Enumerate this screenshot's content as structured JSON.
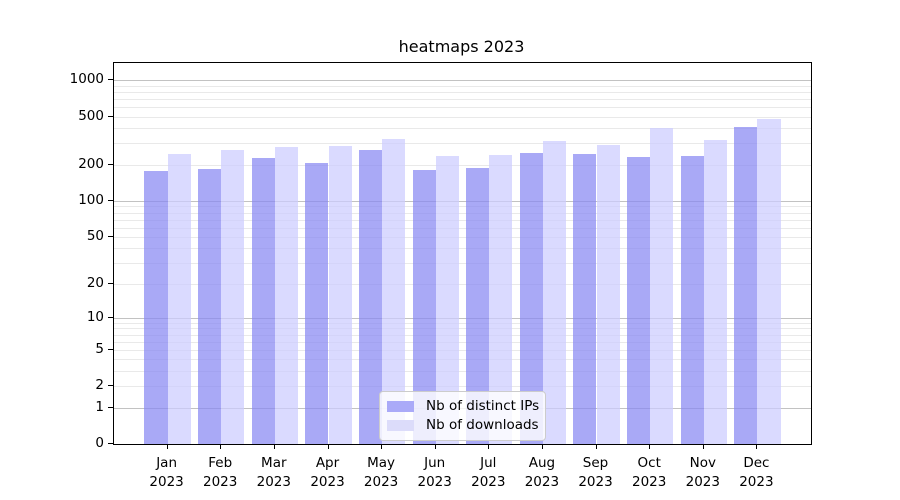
{
  "title": "heatmaps 2023",
  "chart_data": {
    "type": "bar",
    "title": "heatmaps 2023",
    "yscale": "log1p",
    "ylim": [
      0,
      1385
    ],
    "ylabel": "",
    "xlabel": "",
    "yticks": [
      1000,
      500,
      200,
      100,
      50,
      20,
      10,
      5,
      2,
      1,
      0
    ],
    "gridlines": {
      "major": [
        1,
        10,
        100,
        1000
      ],
      "minor": [
        2,
        3,
        4,
        5,
        6,
        7,
        8,
        9,
        20,
        30,
        40,
        50,
        60,
        70,
        80,
        90,
        200,
        300,
        400,
        500,
        600,
        700,
        800,
        900
      ]
    },
    "categories": [
      {
        "month": "Jan",
        "year": "2023"
      },
      {
        "month": "Feb",
        "year": "2023"
      },
      {
        "month": "Mar",
        "year": "2023"
      },
      {
        "month": "Apr",
        "year": "2023"
      },
      {
        "month": "May",
        "year": "2023"
      },
      {
        "month": "Jun",
        "year": "2023"
      },
      {
        "month": "Jul",
        "year": "2023"
      },
      {
        "month": "Aug",
        "year": "2023"
      },
      {
        "month": "Sep",
        "year": "2023"
      },
      {
        "month": "Oct",
        "year": "2023"
      },
      {
        "month": "Nov",
        "year": "2023"
      },
      {
        "month": "Dec",
        "year": "2023"
      }
    ],
    "series": [
      {
        "name": "Nb of distinct IPs",
        "fill": "rgba(136,136,242,0.72)",
        "swatch": "#aaaaf8",
        "values": [
          177,
          184,
          229,
          206,
          264,
          182,
          188,
          250,
          245,
          231,
          236,
          413
        ]
      },
      {
        "name": "Nb of downloads",
        "fill": "rgba(204,204,255,0.72)",
        "swatch": "#dcdcfa",
        "values": [
          245,
          264,
          280,
          285,
          328,
          237,
          240,
          315,
          290,
          402,
          320,
          475
        ]
      }
    ],
    "legend": {
      "position": "lower center"
    }
  }
}
